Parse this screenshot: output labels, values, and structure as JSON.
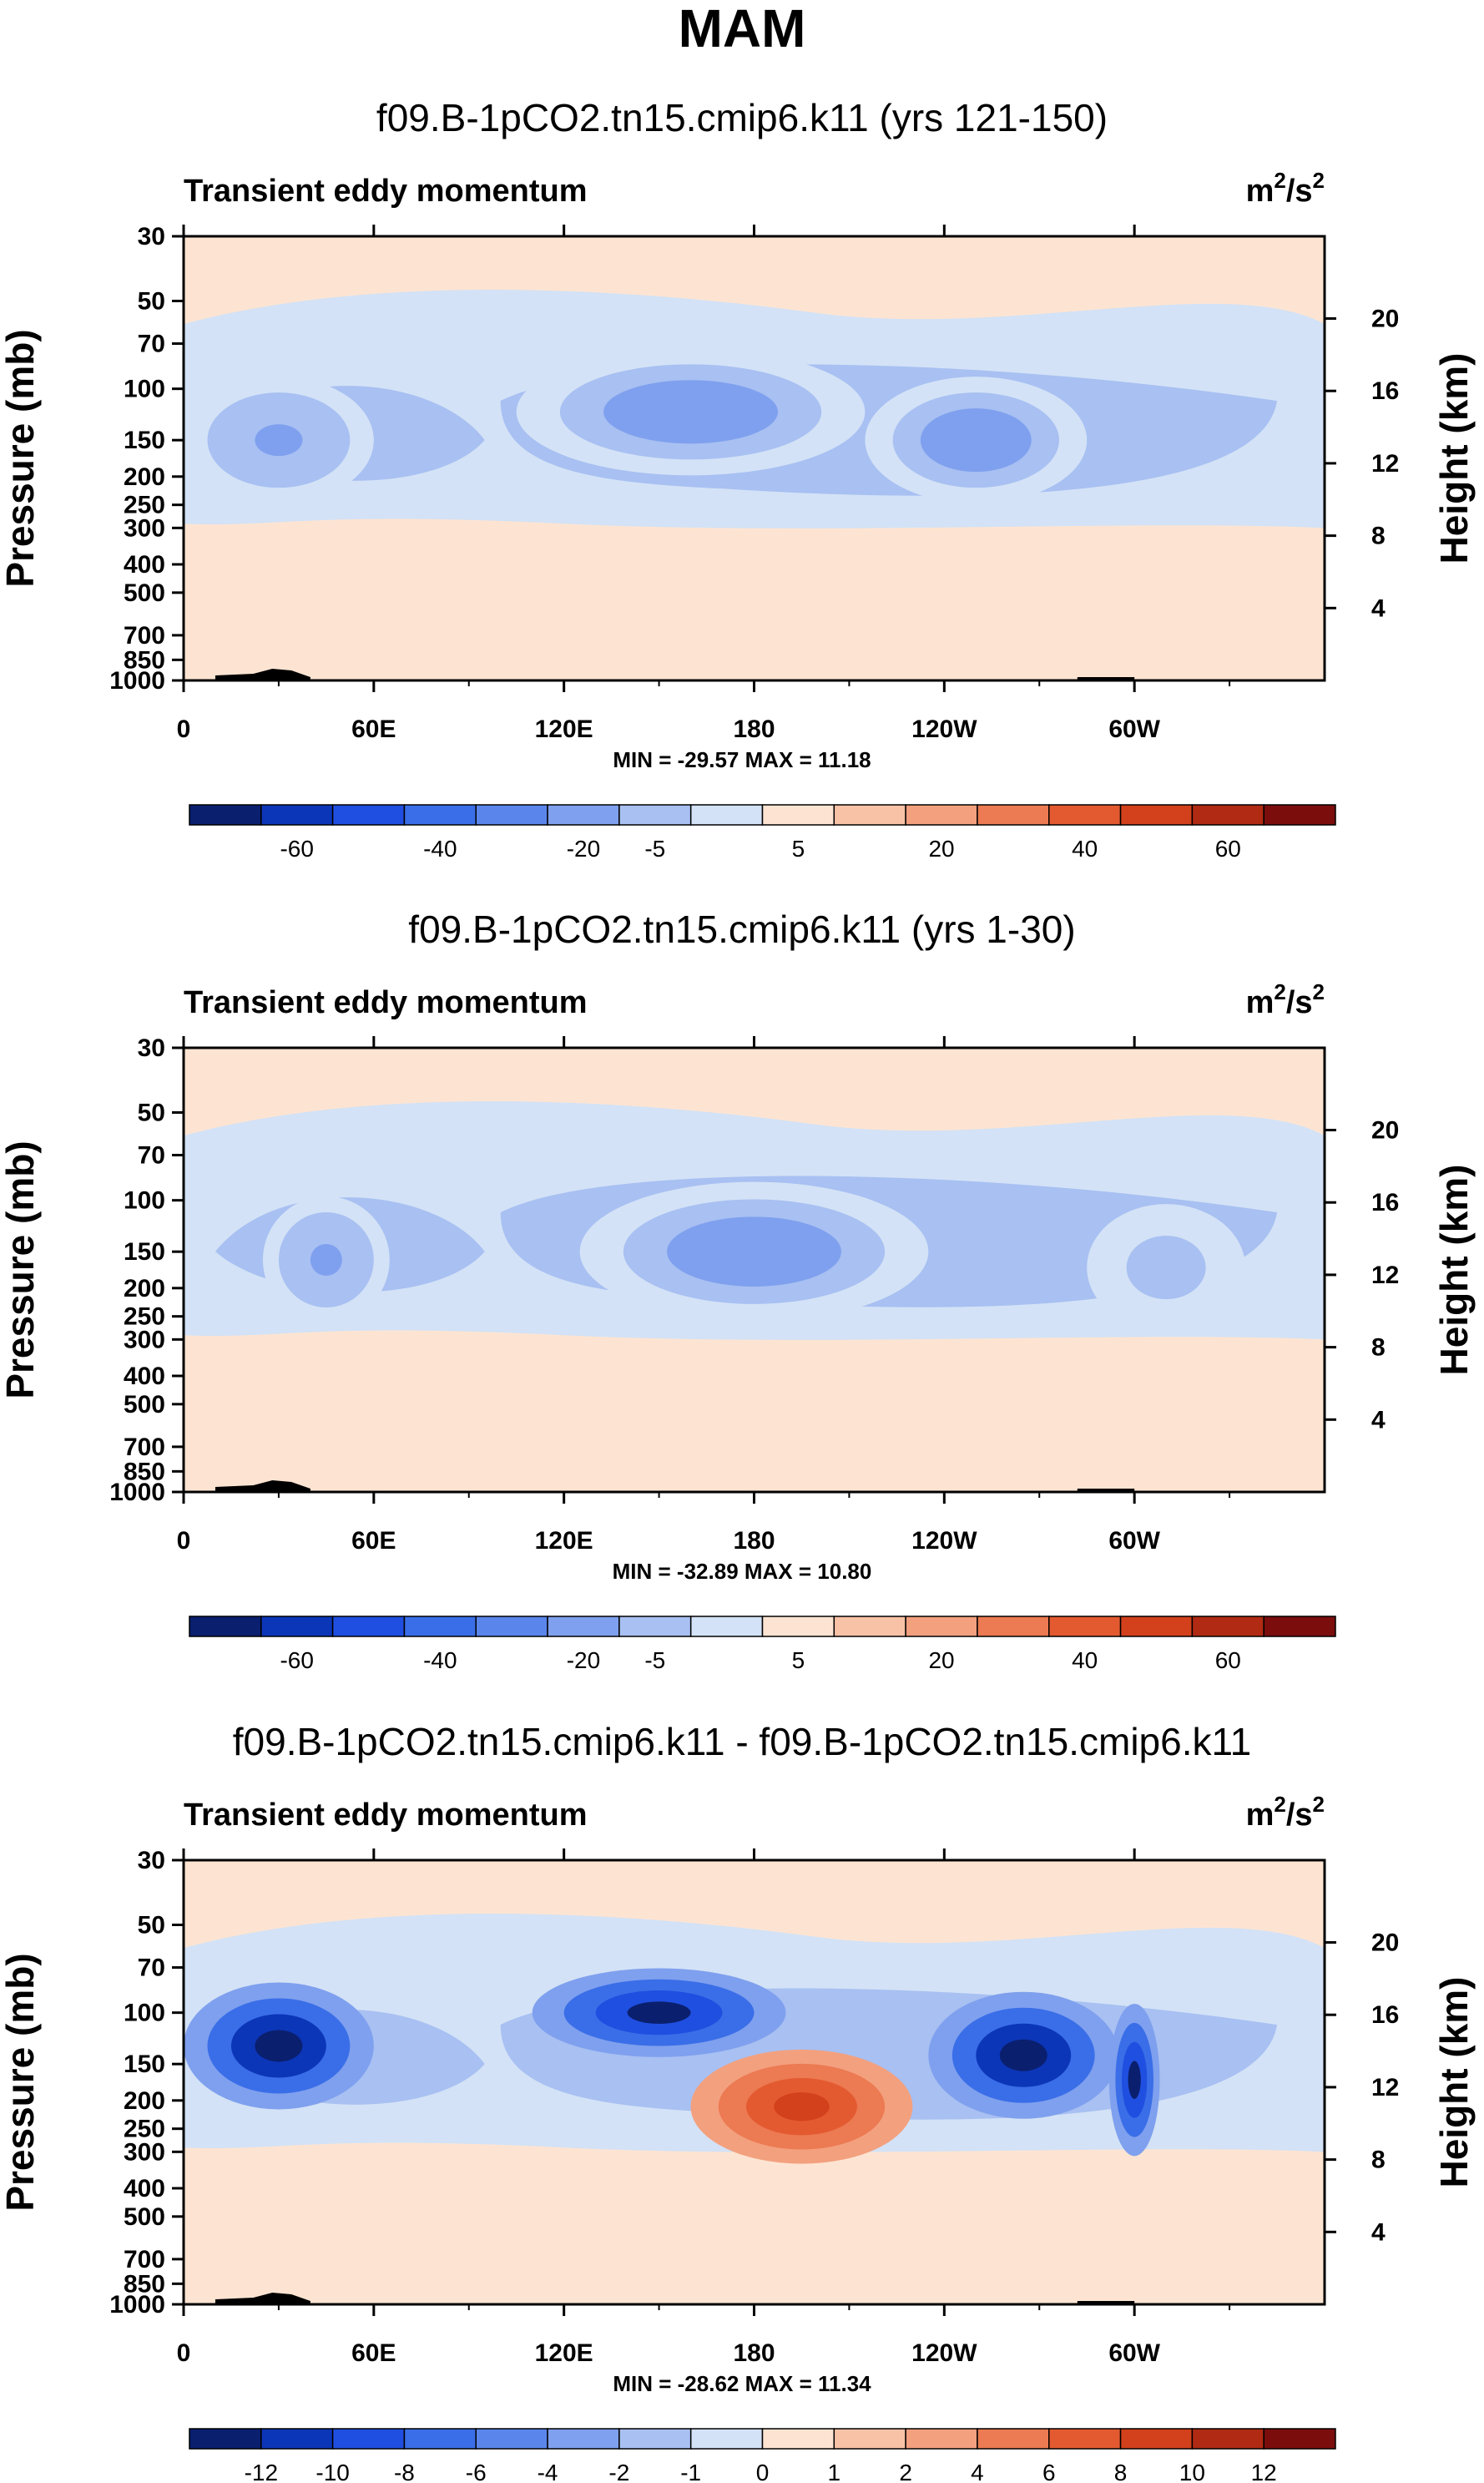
{
  "page_title": "MAM",
  "chart_data": [
    {
      "type": "heatmap",
      "title": "f09.B-1pCO2.tn15.cmip6.k11 (yrs 121-150)",
      "subtitle_left": "Transient eddy momentum",
      "units_base": "m",
      "units_exp1": "2",
      "units_sep": "/s",
      "units_exp2": "2",
      "ylabel": "Pressure (mb)",
      "ylabel_right": "Height (km)",
      "x_ticks": [
        "0",
        "60E",
        "120E",
        "180",
        "120W",
        "60W"
      ],
      "y_ticks": [
        "30",
        "50",
        "70",
        "100",
        "150",
        "200",
        "250",
        "300",
        "400",
        "500",
        "700",
        "850",
        "1000"
      ],
      "y_ticks_right": [
        "20",
        "16",
        "12",
        "8",
        "4"
      ],
      "minmax": "MIN = -29.57  MAX = 11.18",
      "colorbar_labels": [
        "-60",
        "-40",
        "-20",
        "-5",
        "5",
        "20",
        "40",
        "60"
      ],
      "colorbar_colors": [
        "#0a1f6e",
        "#0c36b8",
        "#1f4fe0",
        "#3a6ee8",
        "#5a86ec",
        "#7fa0ee",
        "#a8c0f2",
        "#d3e2f6",
        "#fde4d2",
        "#f8c2a6",
        "#f3a07e",
        "#ec7a52",
        "#e45a30",
        "#d2401c",
        "#b02a14",
        "#7c0d0d"
      ],
      "blobs": [
        {
          "lon": 30,
          "p": 150,
          "val": -12,
          "wlon": 30,
          "wz": 0.5
        },
        {
          "lon": 160,
          "p": 120,
          "val": -14,
          "wlon": 55,
          "wz": 0.5
        },
        {
          "lon": 250,
          "p": 150,
          "val": -14,
          "wlon": 35,
          "wz": 0.5
        }
      ]
    },
    {
      "type": "heatmap",
      "title": "f09.B-1pCO2.tn15.cmip6.k11 (yrs 1-30)",
      "subtitle_left": "Transient eddy momentum",
      "units_base": "m",
      "units_exp1": "2",
      "units_sep": "/s",
      "units_exp2": "2",
      "ylabel": "Pressure (mb)",
      "ylabel_right": "Height (km)",
      "x_ticks": [
        "0",
        "60E",
        "120E",
        "180",
        "120W",
        "60W"
      ],
      "y_ticks": [
        "30",
        "50",
        "70",
        "100",
        "150",
        "200",
        "250",
        "300",
        "400",
        "500",
        "700",
        "850",
        "1000"
      ],
      "y_ticks_right": [
        "20",
        "16",
        "12",
        "8",
        "4"
      ],
      "minmax": "MIN = -32.89  MAX = 10.80",
      "colorbar_labels": [
        "-60",
        "-40",
        "-20",
        "-5",
        "5",
        "20",
        "40",
        "60"
      ],
      "colorbar_colors": [
        "#0a1f6e",
        "#0c36b8",
        "#1f4fe0",
        "#3a6ee8",
        "#5a86ec",
        "#7fa0ee",
        "#a8c0f2",
        "#d3e2f6",
        "#fde4d2",
        "#f8c2a6",
        "#f3a07e",
        "#ec7a52",
        "#e45a30",
        "#d2401c",
        "#b02a14",
        "#7c0d0d"
      ],
      "blobs": [
        {
          "lon": 45,
          "p": 160,
          "val": -10,
          "wlon": 20,
          "wz": 0.5
        },
        {
          "lon": 180,
          "p": 150,
          "val": -16,
          "wlon": 55,
          "wz": 0.55
        },
        {
          "lon": 310,
          "p": 170,
          "val": -8,
          "wlon": 25,
          "wz": 0.5
        }
      ]
    },
    {
      "type": "heatmap",
      "title": "f09.B-1pCO2.tn15.cmip6.k11 - f09.B-1pCO2.tn15.cmip6.k11",
      "subtitle_left": "Transient eddy momentum",
      "units_base": "m",
      "units_exp1": "2",
      "units_sep": "/s",
      "units_exp2": "2",
      "ylabel": "Pressure (mb)",
      "ylabel_right": "Height (km)",
      "x_ticks": [
        "0",
        "60E",
        "120E",
        "180",
        "120W",
        "60W"
      ],
      "y_ticks": [
        "30",
        "50",
        "70",
        "100",
        "150",
        "200",
        "250",
        "300",
        "400",
        "500",
        "700",
        "850",
        "1000"
      ],
      "y_ticks_right": [
        "20",
        "16",
        "12",
        "8",
        "4"
      ],
      "minmax": "MIN = -28.62  MAX = 11.34",
      "colorbar_labels": [
        "-12",
        "-10",
        "-8",
        "-6",
        "-4",
        "-2",
        "-1",
        "0",
        "1",
        "2",
        "4",
        "6",
        "8",
        "10",
        "12"
      ],
      "colorbar_colors": [
        "#0a1f6e",
        "#0c36b8",
        "#1f4fe0",
        "#3a6ee8",
        "#5a86ec",
        "#7fa0ee",
        "#a8c0f2",
        "#d3e2f6",
        "#fde4d2",
        "#f8c2a6",
        "#f3a07e",
        "#ec7a52",
        "#e45a30",
        "#d2401c",
        "#b02a14",
        "#7c0d0d"
      ],
      "blobs": [
        {
          "lon": 30,
          "p": 130,
          "val": -14,
          "wlon": 30,
          "wz": 0.5
        },
        {
          "lon": 150,
          "p": 100,
          "val": -12,
          "wlon": 40,
          "wz": 0.35
        },
        {
          "lon": 195,
          "p": 210,
          "val": 9,
          "wlon": 35,
          "wz": 0.45
        },
        {
          "lon": 265,
          "p": 140,
          "val": -14,
          "wlon": 30,
          "wz": 0.5
        },
        {
          "lon": 300,
          "p": 170,
          "val": -12,
          "wlon": 8,
          "wz": 0.6
        }
      ]
    }
  ]
}
